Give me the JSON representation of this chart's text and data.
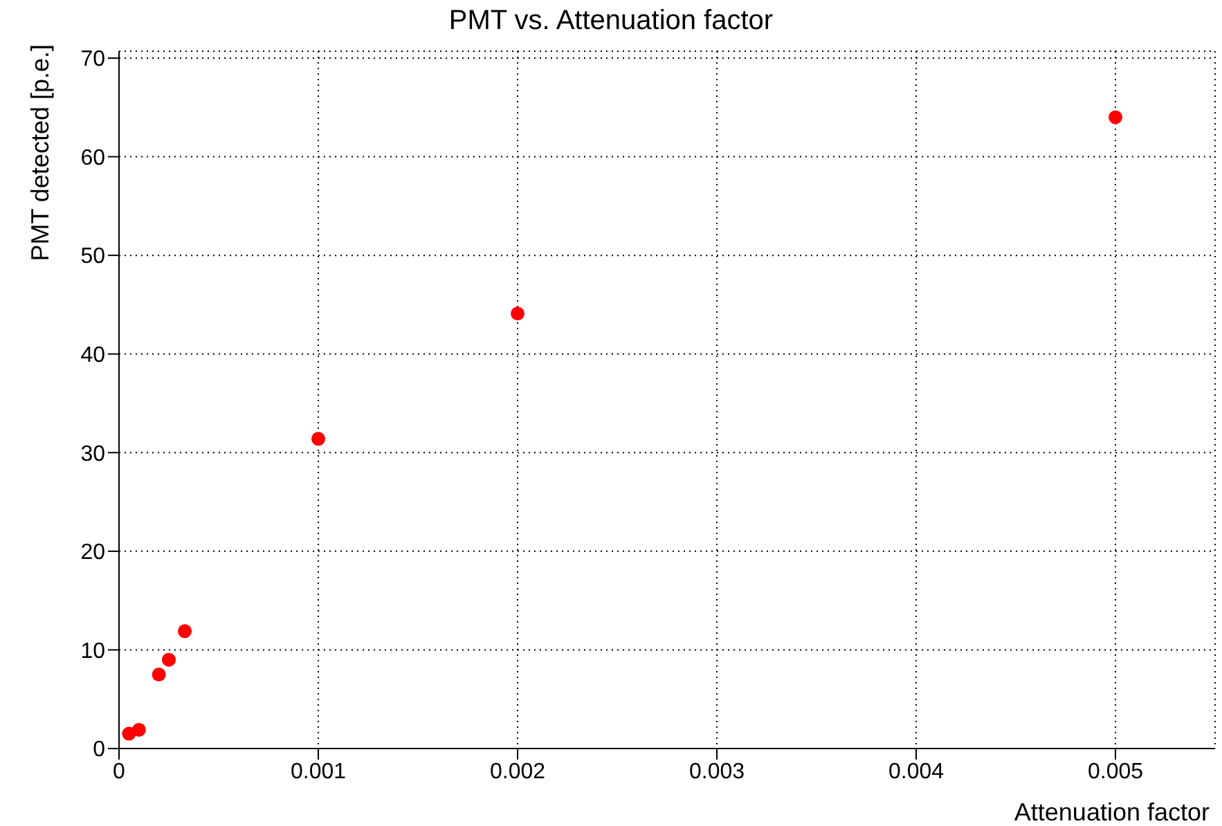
{
  "chart_data": {
    "type": "scatter",
    "title": "PMT vs. Attenuation factor",
    "xlabel": "Attenuation factor",
    "ylabel": "PMT detected [p.e.]",
    "x": [
      5e-05,
      0.0001,
      0.0002,
      0.00025,
      0.00033,
      0.001,
      0.002,
      0.005
    ],
    "series": [
      {
        "color": "#ff0000",
        "values": [
          1.5,
          1.9,
          7.5,
          9.0,
          11.9,
          31.4,
          44.1,
          64.0
        ]
      }
    ],
    "xlim": [
      0,
      0.0055
    ],
    "xticks": [
      0,
      0.001,
      0.002,
      0.003,
      0.004,
      0.005
    ],
    "ylim": [
      0,
      70.7
    ],
    "yticks": [
      0,
      10,
      20,
      30,
      40,
      50,
      60,
      70
    ],
    "grid": true,
    "marker": "circle"
  }
}
